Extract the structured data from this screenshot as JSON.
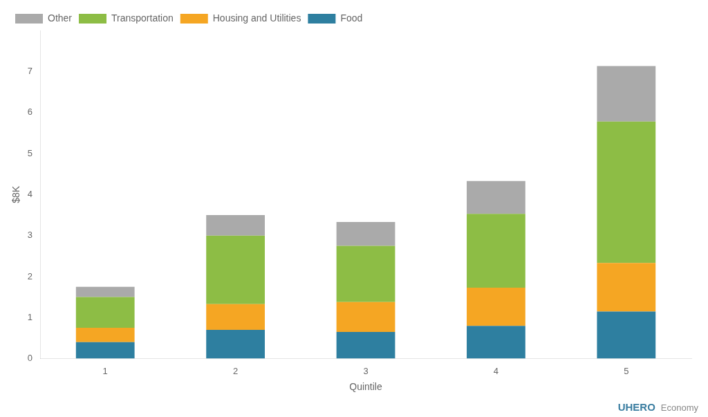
{
  "chart_data": {
    "type": "bar",
    "stacked": true,
    "xlabel": "Quintile",
    "ylabel": "$8K",
    "categories": [
      1,
      2,
      3,
      4,
      5
    ],
    "series": [
      {
        "name": "Food",
        "color": "#2E7FA0",
        "values": [
          0.4,
          0.7,
          0.65,
          0.8,
          1.15
        ]
      },
      {
        "name": "Housing and Utilities",
        "color": "#F5A623",
        "values": [
          0.35,
          0.63,
          0.73,
          0.93,
          1.18
        ]
      },
      {
        "name": "Transportation",
        "color": "#8DBD45",
        "values": [
          0.75,
          1.67,
          1.37,
          1.8,
          3.45
        ]
      },
      {
        "name": "Other",
        "color": "#AAAAAA",
        "values": [
          0.25,
          0.5,
          0.58,
          0.8,
          1.35
        ]
      }
    ],
    "ylim": [
      0,
      8
    ],
    "yticks": [
      0,
      1,
      2,
      3,
      4,
      5,
      6,
      7
    ],
    "grid": false,
    "legend": "upper left",
    "annotations": [
      "UHERO",
      "Economy"
    ]
  }
}
